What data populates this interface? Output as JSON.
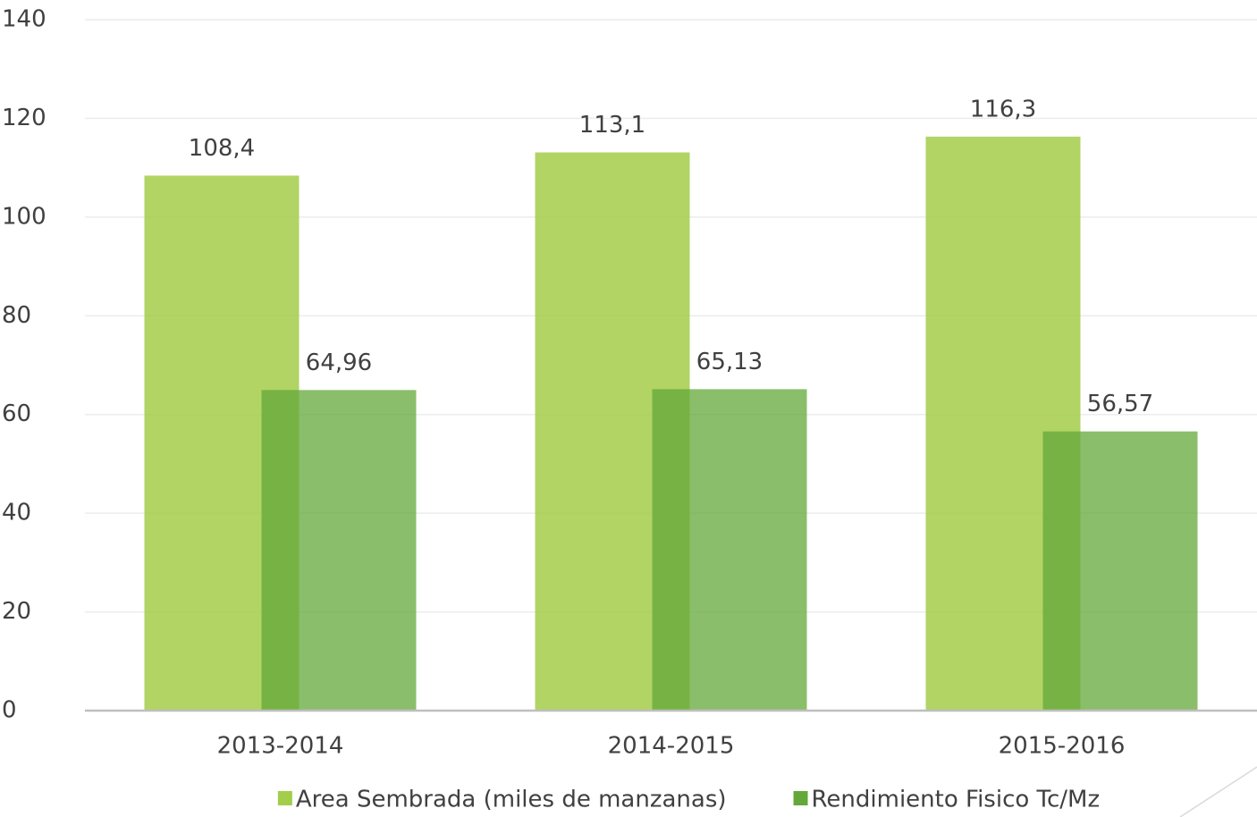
{
  "chart_data": {
    "type": "bar",
    "categories": [
      "2013-2014",
      "2014-2015",
      "2015-2016"
    ],
    "series": [
      {
        "name": "Area Sembrada (miles de manzanas)",
        "color": "#a3cd4a",
        "values": [
          108.4,
          113.1,
          116.3
        ],
        "value_labels": [
          "108,4",
          "113,1",
          "116,3"
        ]
      },
      {
        "name": "Rendimiento Fisico Tc/Mz",
        "color": "#64a83a",
        "values": [
          64.96,
          65.13,
          56.57
        ],
        "value_labels": [
          "64,96",
          "65,13",
          "56,57"
        ]
      }
    ],
    "ylim": [
      0,
      140
    ],
    "yticks": [
      0,
      20,
      40,
      60,
      80,
      100,
      120,
      140
    ],
    "grid": true,
    "legend": "bottom"
  }
}
